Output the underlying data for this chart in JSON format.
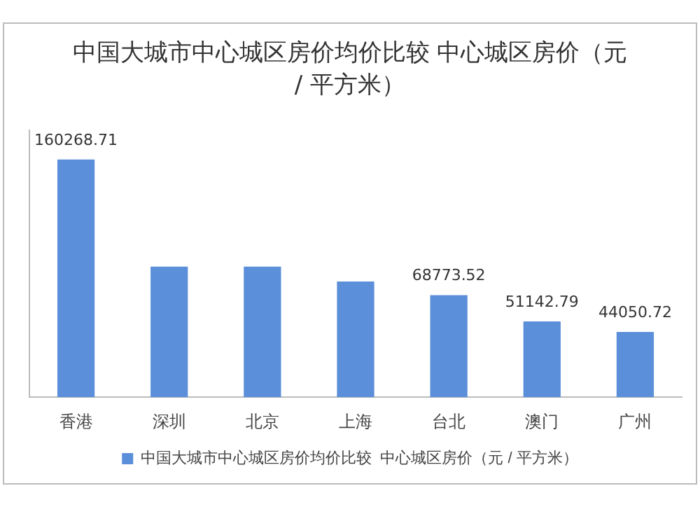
{
  "chart_data": {
    "type": "bar",
    "title": "中国大城市中心城区房价均价比较  中心城区房价（元 / 平方米）",
    "categories": [
      "香港",
      "深圳",
      "北京",
      "上海",
      "台北",
      "澳门",
      "广州"
    ],
    "series": [
      {
        "name": "中国大城市中心城区房价均价比较  中心城区房价（元 / 平方米）",
        "color": "#5b8fd9",
        "values": [
          160268.71,
          88000,
          88000,
          78000,
          68773.52,
          51142.79,
          44050.72
        ],
        "value_labels": [
          "160268.71",
          null,
          null,
          null,
          "68773.52",
          "51142.79",
          "44050.72"
        ]
      }
    ],
    "legend": "bottom",
    "grid": false
  }
}
